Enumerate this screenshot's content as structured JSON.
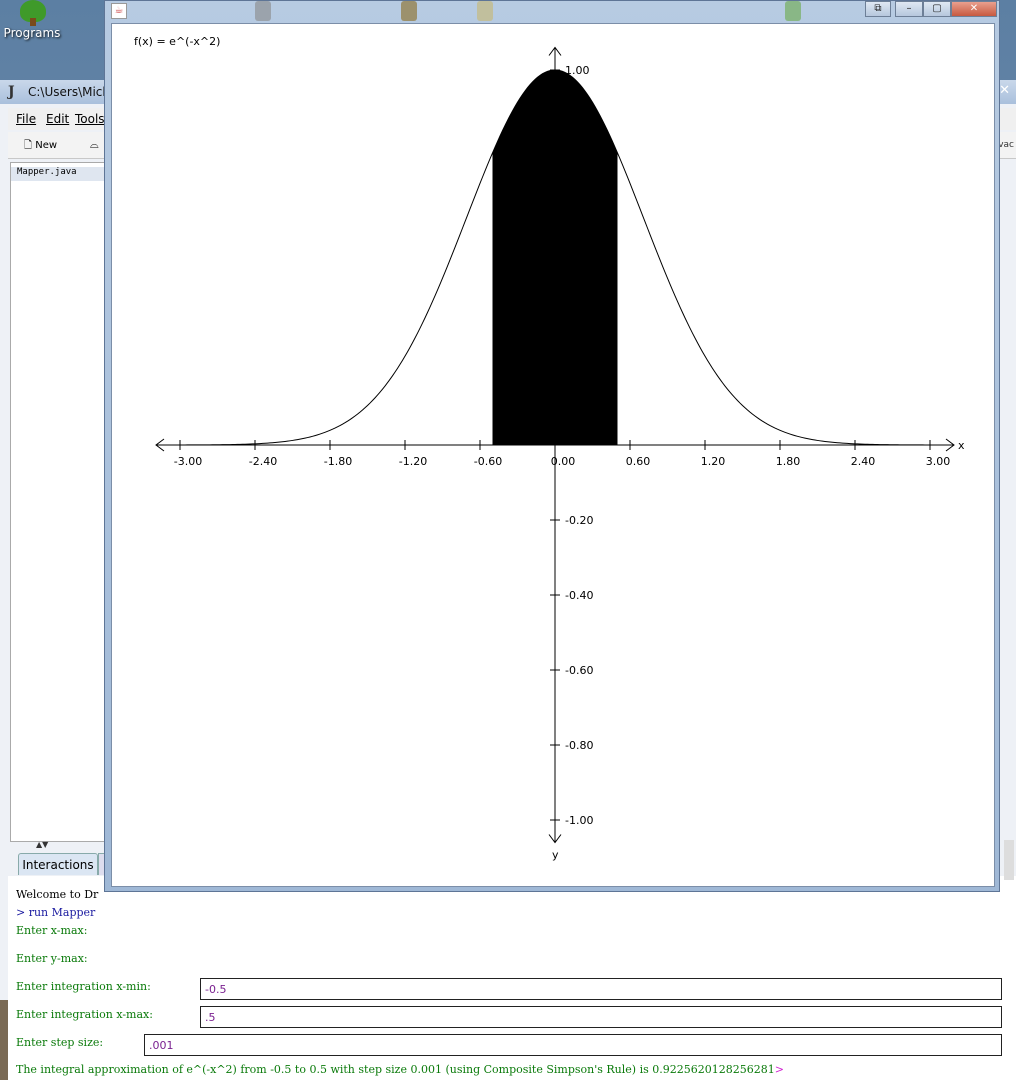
{
  "desktop": {
    "icon_label": "Programs",
    "icon_name": "tree-icon"
  },
  "drjava": {
    "title": "C:\\Users\\Micha",
    "menu": [
      "File",
      "Edit",
      "Tools"
    ],
    "toolbar": {
      "new_label": "New",
      "right_text": "vac"
    },
    "files": [
      "Mapper.java"
    ],
    "tabs": {
      "interactions": "Interactions"
    },
    "console": {
      "welcome": "Welcome to Dr",
      "run_cmd": "> run Mapper",
      "prompts": [
        "Enter x-max:",
        "Enter y-max:",
        "Enter integration x-min:",
        "Enter integration x-max:",
        "Enter step size:"
      ],
      "inputs": {
        "x_min": "-0.5",
        "x_max": ".5",
        "step": ".001"
      },
      "result_text": "The integral approximation of e^(-x^2) from -0.5 to 0.5 with step size 0.001 (using Composite Simpson's Rule) is 0.9225620128256281",
      "prompt_char": ">"
    }
  },
  "plot_window": {
    "buttons": [
      "restore",
      "minimize",
      "maximize",
      "close"
    ]
  },
  "chart_data": {
    "type": "line",
    "function_label": "f(x) = e^(-x^2)",
    "x_axis_label": "x",
    "y_axis_label": "y",
    "xlim": [
      -3,
      3
    ],
    "ylim": [
      -1,
      1
    ],
    "x_ticks": [
      "-3.00",
      "-2.40",
      "-1.80",
      "-1.20",
      "-0.60",
      "0.00",
      "0.60",
      "1.20",
      "1.80",
      "2.40",
      "3.00"
    ],
    "y_ticks_positive": [
      "1.00"
    ],
    "y_ticks_negative": [
      "-0.20",
      "-0.40",
      "-0.60",
      "-0.80",
      "-1.00"
    ],
    "shaded_region": {
      "x_min": -0.5,
      "x_max": 0.5
    },
    "colors": {
      "curve": "#000000",
      "fill": "#000000"
    }
  }
}
